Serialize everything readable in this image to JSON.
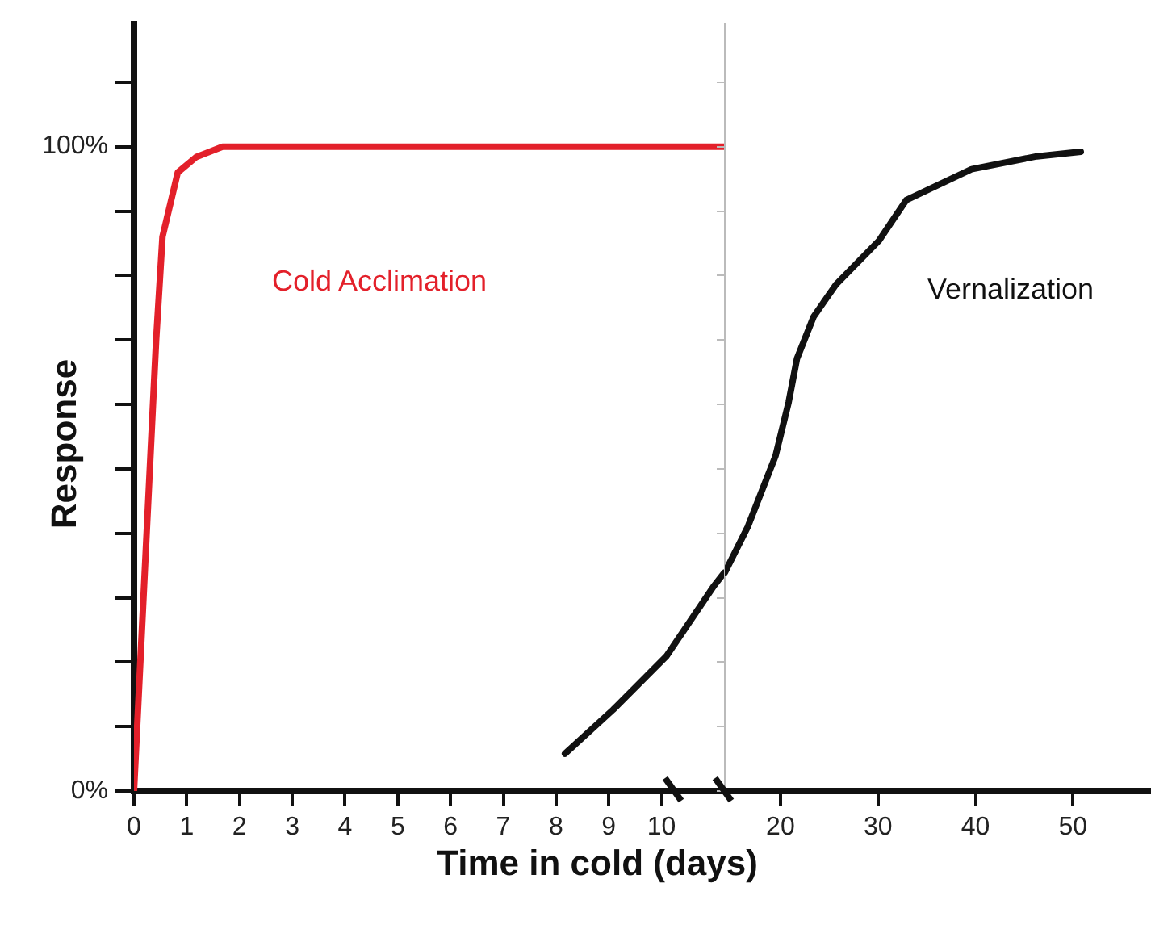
{
  "chart_data": [
    {
      "type": "line",
      "xlabel": "Time in cold (days)",
      "ylabel": "Response",
      "xlim": [
        0,
        11.2
      ],
      "xticks": [
        0,
        1,
        2,
        3,
        4,
        5,
        6,
        7,
        8,
        9,
        10
      ],
      "ylim": [
        0,
        119
      ],
      "yticks": [
        {
          "value": 0,
          "label": "0%"
        },
        {
          "value": 10,
          "label": null
        },
        {
          "value": 20,
          "label": null
        },
        {
          "value": 30,
          "label": null
        },
        {
          "value": 40,
          "label": null
        },
        {
          "value": 50,
          "label": null
        },
        {
          "value": 60,
          "label": null
        },
        {
          "value": 70,
          "label": null
        },
        {
          "value": 80,
          "label": null
        },
        {
          "value": 90,
          "label": null
        },
        {
          "value": 100,
          "label": "100%"
        },
        {
          "value": 110,
          "label": null
        }
      ],
      "grid": false,
      "legend": false,
      "marker": "none",
      "line_style": "solid",
      "series": [
        {
          "name": "Cold Acclimation",
          "color": "#e3202a",
          "x": [
            0,
            0.42,
            0.54,
            0.83,
            1.18,
            1.68,
            11.19
          ],
          "values": [
            0,
            70,
            86,
            96,
            98.4,
            100,
            100
          ]
        },
        {
          "color": "#111111",
          "x": [
            8.17,
            9.08,
            10.09,
            11.0,
            11.19
          ],
          "values": [
            5.8,
            12.6,
            20.9,
            31.9,
            33.9
          ]
        }
      ]
    },
    {
      "type": "line",
      "xlim": [
        14.3,
        58
      ],
      "xticks": [
        20,
        30,
        40,
        50
      ],
      "ylim": [
        0,
        119
      ],
      "yticks": [
        {
          "value": 0,
          "label": null
        },
        {
          "value": 10,
          "label": null
        },
        {
          "value": 20,
          "label": null
        },
        {
          "value": 30,
          "label": null
        },
        {
          "value": 40,
          "label": null
        },
        {
          "value": 50,
          "label": null
        },
        {
          "value": 60,
          "label": null
        },
        {
          "value": 70,
          "label": null
        },
        {
          "value": 80,
          "label": null
        },
        {
          "value": 90,
          "label": null
        },
        {
          "value": 100,
          "label": null
        },
        {
          "value": 110,
          "label": null
        }
      ],
      "tick_labels": "x",
      "grid": false,
      "legend": false,
      "marker": "none",
      "line_style": "solid",
      "series": [
        {
          "name": "Vernalization",
          "color": "#111111",
          "x": [
            14.3,
            16.65,
            19.5,
            20.84,
            21.7,
            23.4,
            25.7,
            30.1,
            32.9,
            39.6,
            46.3,
            50.8
          ],
          "values": [
            33.9,
            41.0,
            52.0,
            60.3,
            67.1,
            73.6,
            78.6,
            85.4,
            91.7,
            96.5,
            98.5,
            99.2
          ]
        }
      ]
    }
  ]
}
